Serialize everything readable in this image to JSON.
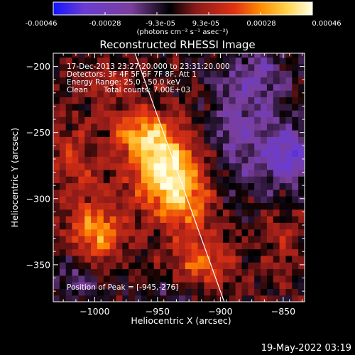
{
  "colorbar": {
    "tick_labels": [
      "-0.00046",
      "-0.00028",
      "-9.3e-05",
      "9.3e-05",
      "0.00028",
      "0.00046"
    ],
    "unit_label": "(photons cm⁻² s⁻¹ asec⁻²)",
    "colormap": [
      "#1414ff",
      "#6a3cd2",
      "#7a3f9c",
      "#000000",
      "#8a1a1a",
      "#e03214",
      "#ff8c00",
      "#ffd24a",
      "#ffffe6"
    ]
  },
  "chart_data": {
    "type": "heatmap",
    "title": "Reconstructed RHESSI Image",
    "xlabel": "Heliocentric X (arcsec)",
    "ylabel": "Heliocentric Y (arcsec)",
    "xlim": [
      -1033,
      -833
    ],
    "ylim": [
      -378,
      -190
    ],
    "x_ticks": [
      -1000,
      -950,
      -900,
      -850
    ],
    "y_ticks": [
      -200,
      -250,
      -300,
      -350
    ],
    "x_tick_labels": [
      "−1000",
      "−950",
      "−900",
      "−850"
    ],
    "y_tick_labels": [
      "−200",
      "−250",
      "−300",
      "−350"
    ],
    "peak_position": [
      -945,
      -276
    ],
    "limb_line": [
      [
        -968,
        -190
      ],
      [
        -897,
        -378
      ]
    ],
    "blobs": [
      {
        "x": -945,
        "y": -276,
        "sx": 18,
        "sy": 22,
        "amp": 0.00046
      },
      {
        "x": -965,
        "y": -250,
        "sx": 14,
        "sy": 12,
        "amp": 0.00024
      },
      {
        "x": -925,
        "y": -300,
        "sx": 14,
        "sy": 18,
        "amp": 0.00022
      },
      {
        "x": -998,
        "y": -325,
        "sx": 16,
        "sy": 16,
        "amp": 0.0003
      },
      {
        "x": -915,
        "y": -348,
        "sx": 16,
        "sy": 14,
        "amp": 0.00025
      },
      {
        "x": -1015,
        "y": -270,
        "sx": 16,
        "sy": 22,
        "amp": 0.00014
      },
      {
        "x": -985,
        "y": -215,
        "sx": 14,
        "sy": 12,
        "amp": 0.0001
      },
      {
        "x": -880,
        "y": -250,
        "sx": 22,
        "sy": 30,
        "amp": -0.00018
      },
      {
        "x": -845,
        "y": -270,
        "sx": 14,
        "sy": 16,
        "amp": -0.00026
      },
      {
        "x": -870,
        "y": -205,
        "sx": 18,
        "sy": 14,
        "amp": -0.00014
      },
      {
        "x": -1015,
        "y": -360,
        "sx": 14,
        "sy": 14,
        "amp": -0.00012
      },
      {
        "x": -940,
        "y": -370,
        "sx": 22,
        "sy": 10,
        "amp": -8e-05
      },
      {
        "x": -850,
        "y": -330,
        "sx": 12,
        "sy": 22,
        "amp": 0.0001
      }
    ]
  },
  "annotations": {
    "time_range": "17-Dec-2013 23:27:20.000 to 23:31:20.000",
    "detectors": "Detectors: 3F 4F 5F 6F 7F 8F, Att 1",
    "energy_range": "Energy Range: 25.0 - 50.0 keV",
    "algorithm": "Clean",
    "total_counts": "Total counts: 7.00E+03",
    "peak_label": "Position of Peak = [-945,-276]"
  },
  "footer": {
    "timestamp": "19-May-2022 03:19"
  }
}
